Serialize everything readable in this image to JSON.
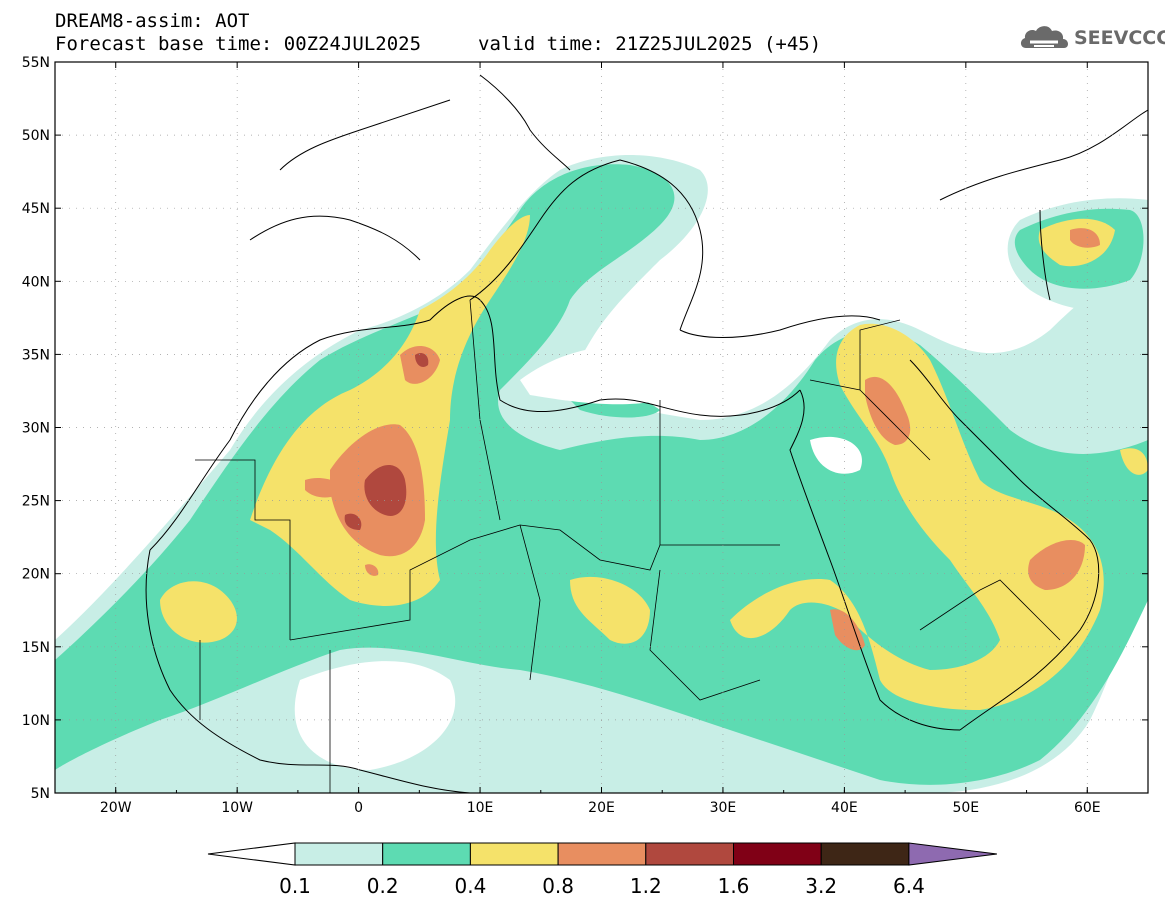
{
  "header": {
    "title_line1": "DREAM8-assim: AOT",
    "title_line2": "Forecast base time: 00Z24JUL2025",
    "valid_time": "valid time: 21Z25JUL2025 (+45)"
  },
  "logo": {
    "text": "SEEVCCC",
    "icon": "cloud-logo-icon"
  },
  "map": {
    "lon_range": [
      -25,
      65
    ],
    "lat_range": [
      5,
      55
    ],
    "lat_labels": [
      "55N",
      "50N",
      "45N",
      "40N",
      "35N",
      "30N",
      "25N",
      "20N",
      "15N",
      "10N",
      "5N"
    ],
    "lon_labels": [
      "20W",
      "10W",
      "0",
      "10E",
      "20E",
      "30E",
      "40E",
      "50E",
      "60E"
    ]
  },
  "colorbar": {
    "labels": [
      "0.1",
      "0.2",
      "0.4",
      "0.8",
      "1.2",
      "1.6",
      "3.2",
      "6.4"
    ],
    "colors": [
      "#ffffff",
      "#c8eee6",
      "#5ddbb2",
      "#f5e26a",
      "#e88e60",
      "#b0483e",
      "#800016",
      "#3e2616",
      "#8e6ab0"
    ]
  },
  "palette": {
    "aot_0_1": "#c8eee6",
    "aot_0_2": "#5ddbb2",
    "aot_0_4": "#f5e26a",
    "aot_0_8": "#e88e60",
    "aot_1_2": "#b0483e"
  }
}
